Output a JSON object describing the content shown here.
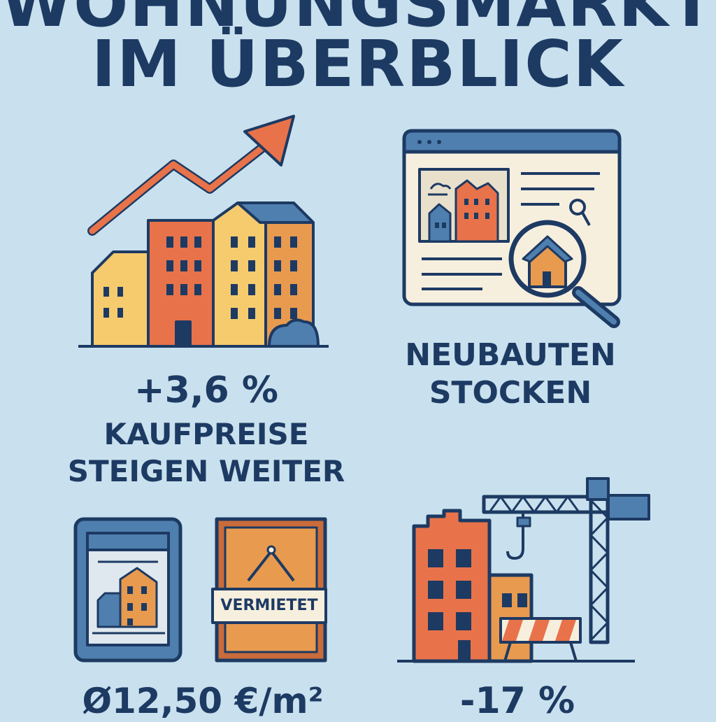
{
  "title": {
    "line1": "WOHNUNGSMARKT",
    "line2": "IM ÜBERBLICK"
  },
  "panels": {
    "prices": {
      "value": "+3,6 %",
      "label_line1": "KAUFPREISE",
      "label_line2": "STEIGEN WEITER",
      "icon": "rising-buildings-chart"
    },
    "newbuilds": {
      "label_line1": "NEUBAUTEN",
      "label_line2": "STOCKEN",
      "icon": "listing-search-window"
    },
    "rent": {
      "value": "Ø12,50 €/m²",
      "sign_text": "VERMIETET",
      "icon": "rented-sign"
    },
    "construction": {
      "value": "-17 %",
      "icon": "construction-crane"
    }
  },
  "colors": {
    "background": "#c9e1ee",
    "navy": "#1d3a63",
    "orange": "#e8734a",
    "yellow": "#f6cb6e",
    "amber": "#e89a4f",
    "blue": "#4f7fae",
    "cream": "#f7efde"
  }
}
